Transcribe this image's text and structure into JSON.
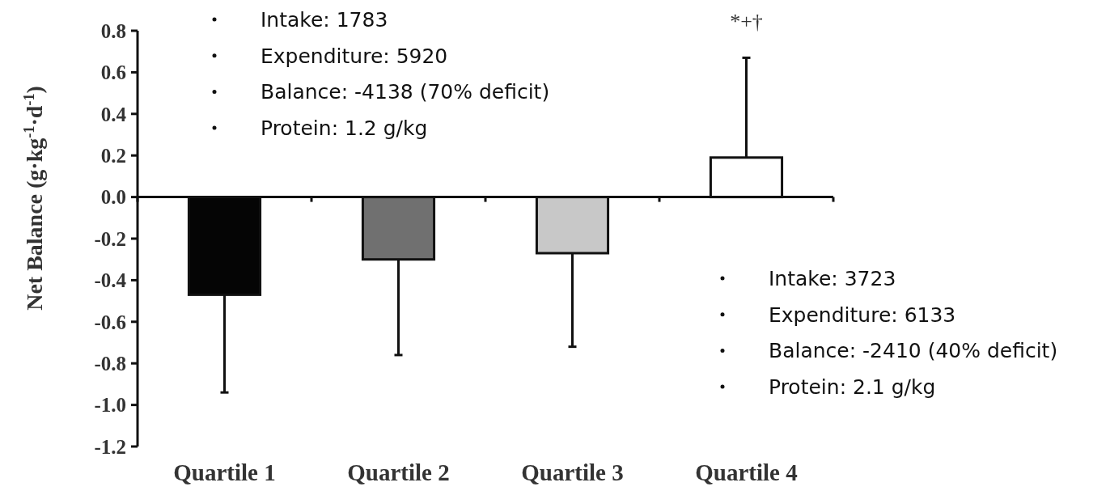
{
  "chart_data": {
    "type": "bar",
    "ylabel": "Net Balance (g·kg$^{-1}$·d$^{-1}$)",
    "categories": [
      "Quartile 1",
      "Quartile 2",
      "Quartile 3",
      "Quartile 4"
    ],
    "values": [
      -0.47,
      -0.3,
      -0.27,
      0.19
    ],
    "colors": [
      "#050505",
      "#707070",
      "#c8c8c8",
      "#ffffff"
    ],
    "errors": [
      [
        -0.94,
        -0.47
      ],
      [
        -0.76,
        -0.3
      ],
      [
        -0.72,
        -0.27
      ],
      [
        0.19,
        0.67
      ]
    ],
    "ylim": [
      -1.2,
      0.8
    ],
    "yticks": [
      {
        "value": -1.2,
        "label": "-1.2"
      },
      {
        "value": -1.0,
        "label": "-1.0"
      },
      {
        "value": -0.8,
        "label": "-0.8"
      },
      {
        "value": -0.6,
        "label": "-0.6"
      },
      {
        "value": -0.4,
        "label": "-0.4"
      },
      {
        "value": -0.2,
        "label": "-0.2"
      },
      {
        "value": 0,
        "label": "0.0"
      },
      {
        "value": 0.2,
        "label": "0.2"
      },
      {
        "value": 0.4,
        "label": "0.4"
      },
      {
        "value": 0.6,
        "label": "0.6"
      },
      {
        "value": 0.8,
        "label": "0.8"
      }
    ],
    "annotations": [
      {
        "text": "*+†",
        "x": "Quartile 4",
        "y": 0.67
      },
      "Intake: 1783",
      "Expenditure: 5920",
      "Balance: -4138 (70% deficit)",
      "Protein: 1.2 g/kg",
      "Intake: 3723",
      "Expenditure: 6133",
      "Balance: -2410 (40% deficit)",
      "Protein: 2.1 g/kg"
    ]
  }
}
